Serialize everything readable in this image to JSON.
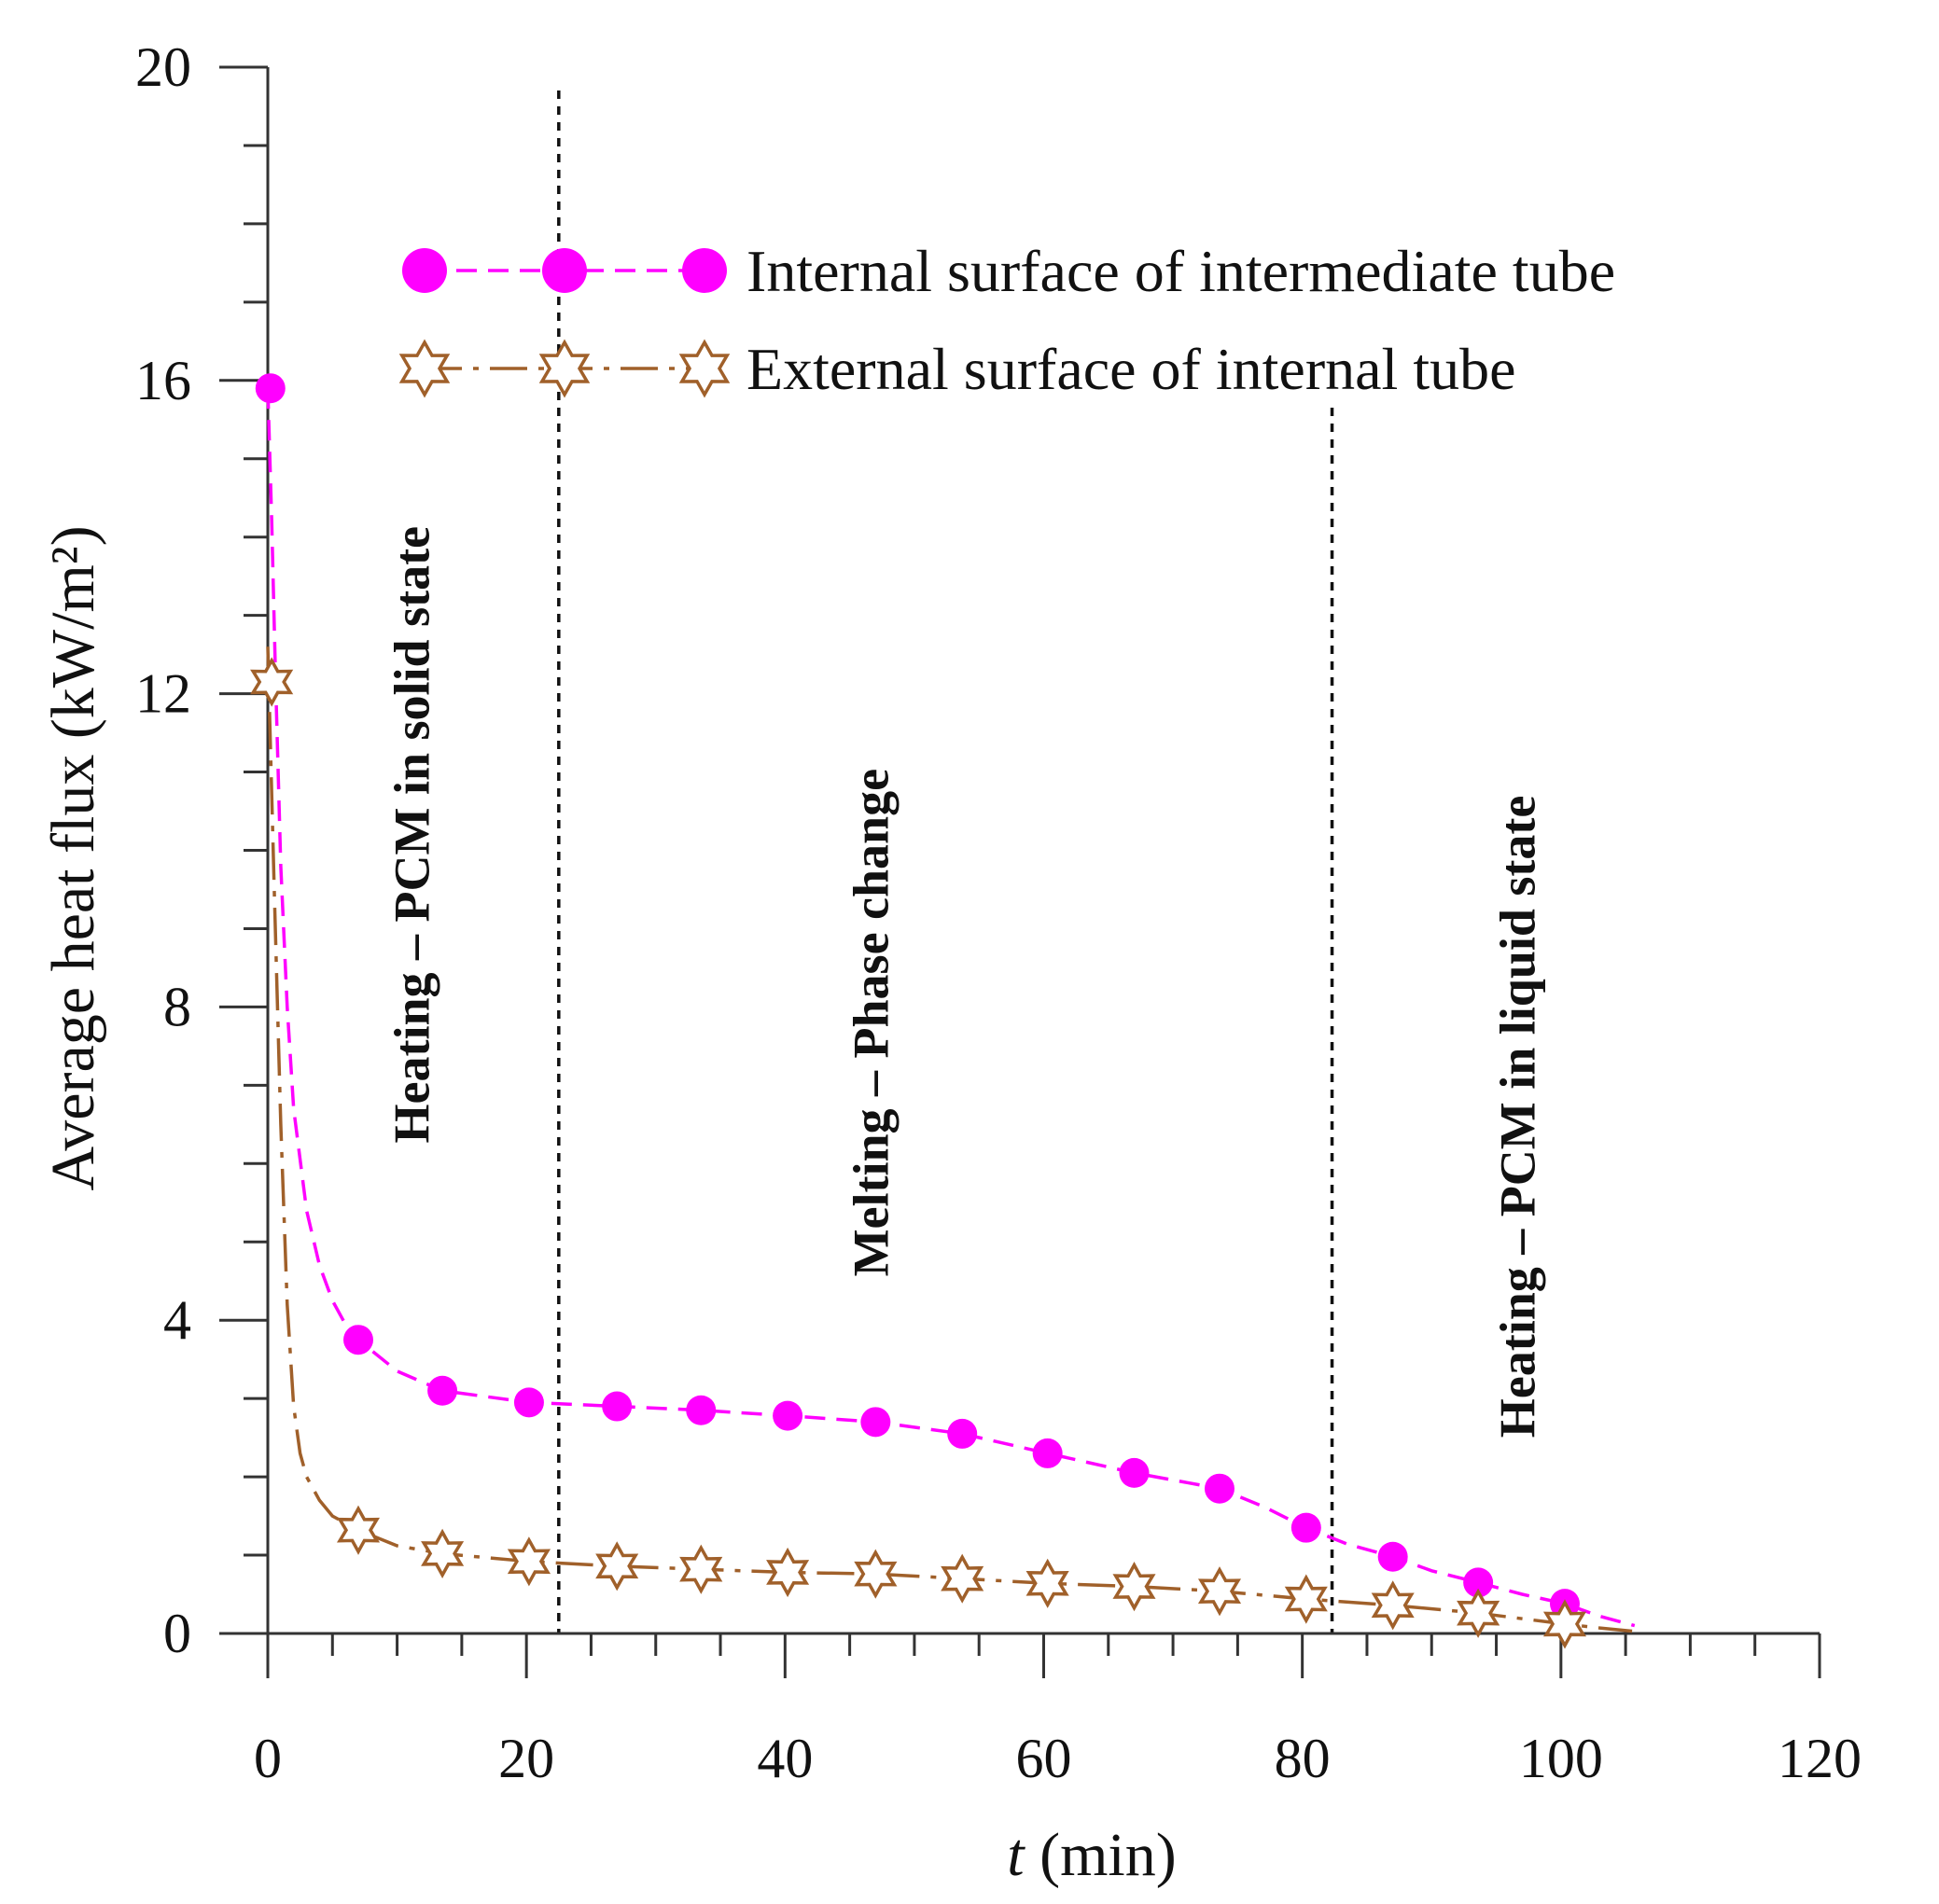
{
  "chart_data": {
    "type": "line",
    "xlabel_italic": "t",
    "xlabel_rest": " (min)",
    "ylabel": "Average heat flux (kW/m²)",
    "xlim": [
      0,
      120
    ],
    "ylim": [
      0,
      20
    ],
    "x_ticks": [
      0,
      20,
      40,
      60,
      80,
      100,
      120
    ],
    "x_minor_step": 5,
    "y_ticks": [
      0,
      4,
      8,
      12,
      16,
      20
    ],
    "y_minor_step": 1,
    "phase_boundaries": [
      22.5,
      82.3
    ],
    "region_labels": [
      {
        "text": "Heating – PCM in solid state",
        "x": 11,
        "y_center": 10.2
      },
      {
        "text": "Melting – Phase change",
        "x": 46.5,
        "y_center": 7.8
      },
      {
        "text": "Heating – PCM in liquid state",
        "x": 96.5,
        "y_center": 6.6
      }
    ],
    "series": [
      {
        "name": "Internal surface of intermediate tube",
        "color": "#ff00ff",
        "marker": "circle",
        "line_style": "dashed",
        "x": [
          0.2,
          7,
          13.5,
          20.2,
          27,
          33.5,
          40.2,
          47,
          53.7,
          60.3,
          67,
          73.6,
          80.3,
          87,
          93.6,
          100.3
        ],
        "values": [
          15.9,
          3.75,
          3.1,
          2.95,
          2.9,
          2.85,
          2.78,
          2.7,
          2.55,
          2.3,
          2.05,
          1.85,
          1.35,
          0.98,
          0.65,
          0.38
        ],
        "curve_x": [
          0,
          0.3,
          0.6,
          1,
          1.5,
          2,
          3,
          4,
          5,
          6,
          7,
          10,
          13.5,
          20.2,
          27,
          33.5,
          40.2,
          47,
          53.7,
          60.3,
          67,
          73.6,
          77,
          80.3,
          83.5,
          87,
          90,
          93.6,
          97,
          100.3,
          103,
          105.7
        ],
        "curve_y": [
          15.9,
          14.2,
          12.2,
          9.8,
          8.0,
          6.7,
          5.4,
          4.7,
          4.25,
          3.95,
          3.75,
          3.35,
          3.1,
          2.95,
          2.9,
          2.85,
          2.78,
          2.7,
          2.55,
          2.3,
          2.05,
          1.85,
          1.62,
          1.35,
          1.14,
          0.98,
          0.8,
          0.65,
          0.5,
          0.38,
          0.22,
          0.1
        ]
      },
      {
        "name": "External surface of internal tube",
        "color": "#a0602a",
        "marker": "star",
        "line_style": "dashdot",
        "x": [
          0.3,
          7,
          13.5,
          20.2,
          27,
          33.5,
          40.2,
          47,
          53.7,
          60.3,
          67,
          73.6,
          80.3,
          87,
          93.6,
          100.3
        ],
        "values": [
          12.15,
          1.32,
          1.02,
          0.92,
          0.86,
          0.82,
          0.78,
          0.76,
          0.7,
          0.64,
          0.6,
          0.54,
          0.44,
          0.36,
          0.26,
          0.12
        ],
        "curve_x": [
          0,
          0.5,
          1,
          1.5,
          2,
          2.5,
          3,
          4,
          5,
          7,
          10,
          13.5,
          20.2,
          27,
          33.5,
          40.2,
          47,
          53.7,
          60.3,
          67,
          73.6,
          80.3,
          87,
          93.6,
          100.3,
          103,
          105.5
        ],
        "curve_y": [
          12.6,
          9.5,
          6.5,
          4.2,
          2.9,
          2.3,
          2.0,
          1.7,
          1.5,
          1.32,
          1.12,
          1.02,
          0.92,
          0.86,
          0.82,
          0.78,
          0.76,
          0.7,
          0.64,
          0.6,
          0.54,
          0.44,
          0.36,
          0.26,
          0.12,
          0.07,
          0.03
        ]
      }
    ],
    "legend_position": "top-right"
  }
}
